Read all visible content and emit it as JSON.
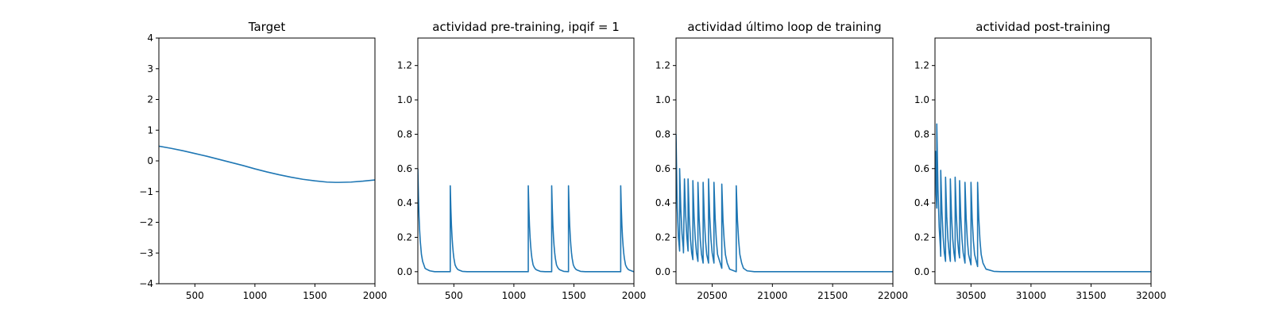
{
  "colors": {
    "series": "#1f77b4",
    "axes": "#000000",
    "background": "#ffffff"
  },
  "chart_data": [
    {
      "type": "line",
      "title": "Target",
      "xlim": [
        200,
        2000
      ],
      "ylim": [
        -4,
        4
      ],
      "xticks": [
        500,
        1000,
        1500,
        2000
      ],
      "yticks": [
        -4,
        -3,
        -2,
        -1,
        0,
        1,
        2,
        3,
        4
      ],
      "xtick_labels": [
        "500",
        "1000",
        "1500",
        "2000"
      ],
      "ytick_labels": [
        "−4",
        "−3",
        "−2",
        "−1",
        "0",
        "1",
        "2",
        "3",
        "4"
      ],
      "grid": false,
      "series": [
        {
          "x": [
            200,
            300,
            400,
            500,
            600,
            700,
            800,
            900,
            1000,
            1100,
            1200,
            1300,
            1400,
            1500,
            1600,
            1670,
            1700,
            1800,
            1900,
            2000
          ],
          "y": [
            0.48,
            0.41,
            0.33,
            0.24,
            0.15,
            0.05,
            -0.05,
            -0.15,
            -0.26,
            -0.36,
            -0.45,
            -0.53,
            -0.6,
            -0.65,
            -0.69,
            -0.7,
            -0.7,
            -0.69,
            -0.66,
            -0.62
          ]
        }
      ]
    },
    {
      "type": "line",
      "title": "actividad pre-training, ipqif = 1",
      "xlim": [
        200,
        2000
      ],
      "ylim": [
        -0.07,
        1.36
      ],
      "xticks": [
        500,
        1000,
        1500,
        2000
      ],
      "yticks": [
        0.0,
        0.2,
        0.4,
        0.6,
        0.8,
        1.0,
        1.2
      ],
      "xtick_labels": [
        "500",
        "1000",
        "1500",
        "2000"
      ],
      "ytick_labels": [
        "0.0",
        "0.2",
        "0.4",
        "0.6",
        "0.8",
        "1.0",
        "1.2"
      ],
      "grid": false,
      "series": [
        {
          "x": [
            200,
            205,
            210,
            215,
            220,
            225,
            230,
            240,
            250,
            260,
            270,
            300,
            340,
            470,
            470,
            475,
            480,
            485,
            490,
            495,
            500,
            510,
            520,
            530,
            540,
            570,
            610,
            1120,
            1120,
            1125,
            1130,
            1135,
            1140,
            1145,
            1150,
            1160,
            1170,
            1180,
            1190,
            1220,
            1260,
            1315,
            1315,
            1320,
            1325,
            1330,
            1335,
            1340,
            1345,
            1355,
            1365,
            1375,
            1385,
            1415,
            1455,
            1455,
            1460,
            1465,
            1470,
            1475,
            1480,
            1485,
            1495,
            1505,
            1515,
            1525,
            1555,
            1595,
            1890,
            1890,
            1895,
            1900,
            1905,
            1910,
            1915,
            1920,
            1930,
            1940,
            1950,
            1960,
            1990,
            2000
          ],
          "y": [
            0.6,
            0.44,
            0.32,
            0.24,
            0.18,
            0.14,
            0.1,
            0.06,
            0.04,
            0.02,
            0.015,
            0.005,
            0.0,
            0.0,
            0.5,
            0.37,
            0.27,
            0.2,
            0.15,
            0.11,
            0.08,
            0.04,
            0.025,
            0.015,
            0.01,
            0.002,
            0.0,
            0.0,
            0.5,
            0.37,
            0.27,
            0.2,
            0.15,
            0.11,
            0.08,
            0.04,
            0.025,
            0.015,
            0.01,
            0.002,
            0.0,
            0.0,
            0.5,
            0.37,
            0.27,
            0.2,
            0.15,
            0.11,
            0.08,
            0.04,
            0.025,
            0.015,
            0.01,
            0.002,
            0.0,
            0.5,
            0.37,
            0.27,
            0.2,
            0.15,
            0.11,
            0.08,
            0.04,
            0.025,
            0.015,
            0.01,
            0.002,
            0.0,
            0.0,
            0.5,
            0.37,
            0.27,
            0.2,
            0.15,
            0.11,
            0.08,
            0.04,
            0.025,
            0.015,
            0.01,
            0.002,
            0.0
          ]
        }
      ]
    },
    {
      "type": "line",
      "title": "actividad último loop de training",
      "xlim": [
        20200,
        22000
      ],
      "ylim": [
        -0.07,
        1.36
      ],
      "xticks": [
        20500,
        21000,
        21500,
        22000
      ],
      "yticks": [
        0.0,
        0.2,
        0.4,
        0.6,
        0.8,
        1.0,
        1.2
      ],
      "xtick_labels": [
        "20500",
        "21000",
        "21500",
        "22000"
      ],
      "ytick_labels": [
        "0.0",
        "0.2",
        "0.4",
        "0.6",
        "0.8",
        "1.0",
        "1.2"
      ],
      "grid": false,
      "series": [
        {
          "x": [
            20200,
            20210,
            20220,
            20230,
            20230,
            20240,
            20250,
            20260,
            20262,
            20270,
            20280,
            20290,
            20300,
            20300,
            20310,
            20320,
            20330,
            20340,
            20340,
            20350,
            20360,
            20370,
            20382,
            20382,
            20392,
            20402,
            20412,
            20425,
            20425,
            20435,
            20445,
            20455,
            20470,
            20470,
            20480,
            20490,
            20500,
            20515,
            20515,
            20525,
            20535,
            20545,
            20580,
            20580,
            20590,
            20600,
            20610,
            20625,
            20645,
            20700,
            20700,
            20710,
            20720,
            20730,
            20745,
            20760,
            20790,
            20850,
            22000
          ],
          "y": [
            0.8,
            0.37,
            0.2,
            0.12,
            0.6,
            0.36,
            0.22,
            0.14,
            0.11,
            0.54,
            0.33,
            0.2,
            0.12,
            0.54,
            0.32,
            0.19,
            0.11,
            0.07,
            0.53,
            0.32,
            0.19,
            0.11,
            0.06,
            0.52,
            0.31,
            0.18,
            0.1,
            0.05,
            0.52,
            0.31,
            0.18,
            0.1,
            0.05,
            0.54,
            0.32,
            0.19,
            0.11,
            0.05,
            0.52,
            0.31,
            0.18,
            0.1,
            0.02,
            0.51,
            0.3,
            0.18,
            0.1,
            0.05,
            0.015,
            0.0,
            0.5,
            0.3,
            0.18,
            0.1,
            0.05,
            0.02,
            0.005,
            0.0,
            0.0
          ]
        }
      ]
    },
    {
      "type": "line",
      "title": "actividad post-training",
      "xlim": [
        30200,
        32000
      ],
      "ylim": [
        -0.07,
        1.36
      ],
      "xticks": [
        30500,
        31000,
        31500,
        32000
      ],
      "yticks": [
        0.0,
        0.2,
        0.4,
        0.6,
        0.8,
        1.0,
        1.2
      ],
      "xtick_labels": [
        "30500",
        "31000",
        "31500",
        "32000"
      ],
      "ytick_labels": [
        "0.0",
        "0.2",
        "0.4",
        "0.6",
        "0.8",
        "1.0",
        "1.2"
      ],
      "grid": false,
      "series": [
        {
          "x": [
            30200,
            30205,
            30210,
            30215,
            30215,
            30225,
            30235,
            30245,
            30248,
            30248,
            30258,
            30268,
            30278,
            30288,
            30288,
            30298,
            30308,
            30318,
            30328,
            30328,
            30338,
            30348,
            30358,
            30368,
            30368,
            30378,
            30388,
            30398,
            30405,
            30405,
            30415,
            30425,
            30435,
            30450,
            30450,
            30460,
            30470,
            30480,
            30500,
            30500,
            30510,
            30520,
            30530,
            30555,
            30555,
            30565,
            30575,
            30585,
            30600,
            30625,
            30690,
            30750,
            32000
          ],
          "y": [
            0.64,
            0.7,
            0.45,
            0.37,
            0.86,
            0.48,
            0.26,
            0.14,
            0.09,
            0.59,
            0.35,
            0.2,
            0.11,
            0.06,
            0.55,
            0.32,
            0.19,
            0.11,
            0.06,
            0.54,
            0.32,
            0.19,
            0.11,
            0.06,
            0.55,
            0.33,
            0.19,
            0.11,
            0.08,
            0.53,
            0.32,
            0.19,
            0.11,
            0.05,
            0.52,
            0.31,
            0.18,
            0.1,
            0.04,
            0.52,
            0.31,
            0.18,
            0.1,
            0.03,
            0.52,
            0.31,
            0.18,
            0.1,
            0.05,
            0.015,
            0.002,
            0.0,
            0.0
          ]
        }
      ]
    }
  ]
}
